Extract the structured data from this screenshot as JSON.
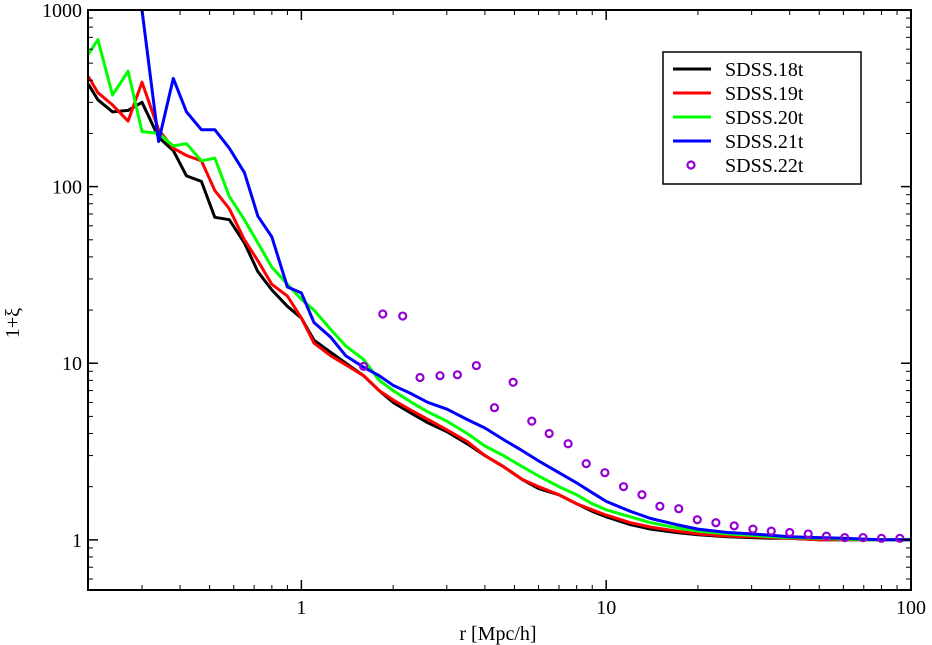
{
  "chart_data": {
    "type": "line",
    "title": "",
    "xlabel": "r [Mpc/h]",
    "ylabel": "1+ξ",
    "xscale": "log",
    "yscale": "log",
    "xlim": [
      0.1995,
      100
    ],
    "ylim": [
      0.52,
      1000
    ],
    "x_ticks": [
      1,
      10,
      100
    ],
    "x_tick_labels": [
      "1",
      "10",
      "100"
    ],
    "y_ticks": [
      1,
      10,
      100,
      1000
    ],
    "y_tick_labels": [
      "1",
      "10",
      "100",
      "1000"
    ],
    "legend_position": "top-right",
    "grid": false,
    "series": [
      {
        "name": "SDSS.18t",
        "color": "#000000",
        "style": "line",
        "x": [
          0.2,
          0.215,
          0.24,
          0.27,
          0.3,
          0.34,
          0.38,
          0.42,
          0.47,
          0.52,
          0.58,
          0.65,
          0.72,
          0.8,
          0.9,
          1.0,
          1.1,
          1.25,
          1.4,
          1.6,
          1.8,
          2.0,
          2.3,
          2.6,
          3.0,
          3.5,
          4.0,
          4.6,
          5.3,
          6.0,
          7.0,
          8.0,
          9.0,
          10.0,
          12.0,
          14.0,
          17.0,
          20.0,
          25.0,
          30.0,
          35.0,
          40.0,
          50.0,
          60.0,
          70.0,
          80.0,
          90.0,
          100.0
        ],
        "values": [
          380,
          310,
          265,
          270,
          300,
          190,
          160,
          115,
          107,
          67,
          65,
          48,
          33,
          26,
          21,
          18,
          13.5,
          11.5,
          10,
          8.5,
          7,
          6,
          5.2,
          4.6,
          4.1,
          3.5,
          3.0,
          2.6,
          2.2,
          1.95,
          1.8,
          1.6,
          1.45,
          1.35,
          1.22,
          1.15,
          1.1,
          1.07,
          1.04,
          1.03,
          1.02,
          1.02,
          1.0,
          1.0,
          1.0,
          1.0,
          1.0,
          1.0
        ]
      },
      {
        "name": "SDSS.19t",
        "color": "#ff0000",
        "style": "line",
        "x": [
          0.2,
          0.215,
          0.24,
          0.27,
          0.3,
          0.34,
          0.38,
          0.42,
          0.47,
          0.52,
          0.58,
          0.65,
          0.72,
          0.8,
          0.9,
          1.0,
          1.1,
          1.25,
          1.4,
          1.6,
          1.8,
          2.0,
          2.3,
          2.6,
          3.0,
          3.5,
          4.0,
          4.6,
          5.3,
          6.0,
          7.0,
          8.0,
          9.0,
          10.0,
          12.0,
          14.0,
          17.0,
          20.0,
          25.0,
          30.0,
          35.0,
          40.0,
          50.0,
          60.0,
          70.0,
          80.0,
          90.0,
          100.0
        ],
        "values": [
          420,
          340,
          290,
          235,
          390,
          210,
          165,
          150,
          140,
          95,
          75,
          50,
          38,
          28,
          24,
          18,
          13,
          11,
          9.8,
          8.5,
          7,
          6.2,
          5.4,
          4.8,
          4.2,
          3.6,
          3.0,
          2.6,
          2.2,
          2.0,
          1.8,
          1.6,
          1.48,
          1.38,
          1.25,
          1.18,
          1.12,
          1.08,
          1.05,
          1.04,
          1.03,
          1.02,
          1.0,
          1.0,
          1.0,
          1.0,
          1.0,
          1.0
        ]
      },
      {
        "name": "SDSS.20t",
        "color": "#00ff00",
        "style": "line",
        "x": [
          0.2,
          0.215,
          0.24,
          0.27,
          0.3,
          0.34,
          0.38,
          0.42,
          0.47,
          0.52,
          0.58,
          0.65,
          0.72,
          0.8,
          0.9,
          1.0,
          1.1,
          1.25,
          1.4,
          1.6,
          1.8,
          2.0,
          2.3,
          2.6,
          3.0,
          3.5,
          4.0,
          4.6,
          5.3,
          6.0,
          7.0,
          8.0,
          9.0,
          10.0,
          12.0,
          14.0,
          17.0,
          20.0,
          25.0,
          30.0,
          35.0,
          40.0,
          50.0,
          60.0,
          70.0,
          80.0,
          90.0,
          100.0
        ],
        "values": [
          560,
          680,
          330,
          450,
          205,
          200,
          170,
          175,
          140,
          145,
          88,
          65,
          48,
          35,
          28,
          23,
          20,
          15.5,
          12.5,
          10.5,
          8,
          7,
          6,
          5.3,
          4.7,
          4.0,
          3.4,
          3.0,
          2.6,
          2.3,
          2.0,
          1.8,
          1.6,
          1.48,
          1.35,
          1.25,
          1.17,
          1.12,
          1.08,
          1.06,
          1.04,
          1.03,
          1.02,
          1.01,
          1.0,
          1.0,
          1.0,
          1.0
        ]
      },
      {
        "name": "SDSS.21t",
        "color": "#0000ff",
        "style": "line",
        "x": [
          0.3,
          0.34,
          0.38,
          0.42,
          0.47,
          0.52,
          0.58,
          0.65,
          0.72,
          0.8,
          0.9,
          1.0,
          1.1,
          1.25,
          1.4,
          1.6,
          1.8,
          2.0,
          2.3,
          2.6,
          3.0,
          3.5,
          4.0,
          4.6,
          5.3,
          6.0,
          7.0,
          8.0,
          9.0,
          10.0,
          12.0,
          14.0,
          17.0,
          20.0,
          25.0,
          30.0,
          35.0,
          40.0,
          50.0,
          60.0,
          70.0,
          80.0,
          90.0,
          100.0
        ],
        "values": [
          1000,
          180,
          410,
          265,
          210,
          210,
          165,
          120,
          68,
          52,
          27,
          25,
          17,
          14,
          11,
          9.5,
          8.5,
          7.5,
          6.7,
          6,
          5.5,
          4.8,
          4.3,
          3.7,
          3.2,
          2.8,
          2.4,
          2.1,
          1.85,
          1.65,
          1.45,
          1.32,
          1.22,
          1.15,
          1.1,
          1.08,
          1.06,
          1.04,
          1.03,
          1.02,
          1.01,
          1.0,
          1.0,
          1.0
        ]
      },
      {
        "name": "SDSS.22t",
        "color": "#9400d3",
        "style": "markers",
        "x": [
          1.6,
          1.85,
          2.15,
          2.45,
          2.85,
          3.25,
          3.75,
          4.3,
          4.95,
          5.7,
          6.5,
          7.5,
          8.6,
          9.9,
          11.4,
          13.1,
          15.0,
          17.3,
          19.9,
          22.9,
          26.3,
          30.3,
          34.8,
          40.0,
          46.0,
          52.8,
          60.6,
          69.6,
          80.0,
          91.9
        ],
        "values": [
          9.6,
          19,
          18.5,
          8.3,
          8.5,
          8.6,
          9.7,
          5.6,
          7.8,
          4.7,
          4.0,
          3.5,
          2.7,
          2.4,
          2.0,
          1.8,
          1.55,
          1.5,
          1.3,
          1.25,
          1.2,
          1.15,
          1.12,
          1.1,
          1.08,
          1.05,
          1.03,
          1.03,
          1.02,
          1.02
        ]
      }
    ]
  }
}
